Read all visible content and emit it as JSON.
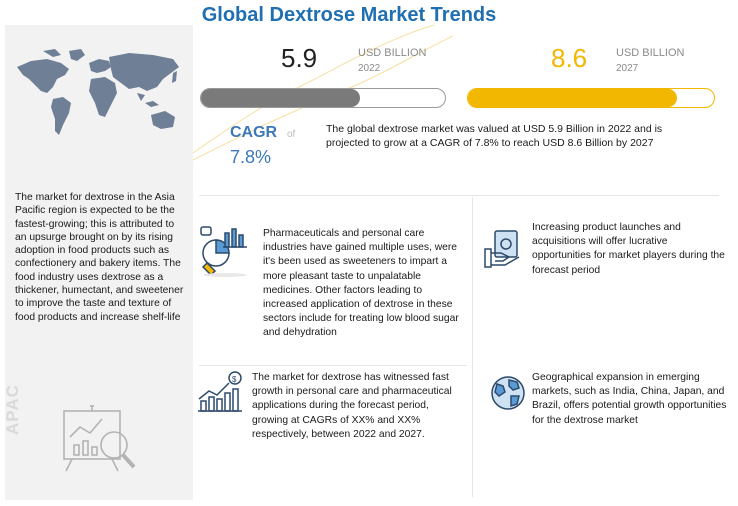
{
  "title": "Global Dextrose Market Trends",
  "market_2022": {
    "value": "5.9",
    "unit": "USD BILLION",
    "year": "2022",
    "bar_fill_fraction": 0.65
  },
  "market_2027": {
    "value": "8.6",
    "unit": "USD BILLION",
    "year": "2027",
    "bar_fill_fraction": 0.85
  },
  "cagr": {
    "label": "CAGR",
    "of": "of",
    "value": "7.8%"
  },
  "summary": "The global dextrose market was valued at USD 5.9 Billion in 2022 and is projected to grow at a CAGR of 7.8% to reach USD 8.6 Billion by 2027",
  "region": {
    "label": "APAC",
    "text": "The market for dextrose in the Asia Pacific region is expected to be the fastest-growing; this is attributed to an upsurge brought on by its rising adoption in food products such as confectionery and bakery items. The food industry uses dextrose as a thickener, humectant, and sweetener to improve the taste and texture of food products and increase shelf-life"
  },
  "insights": [
    {
      "icon": "pharma-chart-icon",
      "text": "Pharmaceuticals and personal care industries have gained multiple uses, were it's been used as sweeteners to impart a more pleasant taste to unpalatable medicines. Other factors leading to increased application of dextrose in these sectors include for treating low blood sugar and dehydration"
    },
    {
      "icon": "money-hand-icon",
      "text": "Increasing product launches and acquisitions will offer lucrative opportunities for market players during the forecast period"
    },
    {
      "icon": "growth-bar-chart-icon",
      "text": "The market for dextrose has witnessed fast growth in personal care and pharmaceutical applications during the forecast period, growing at CAGRs of XX% and XX% respectively, between 2022 and 2027."
    },
    {
      "icon": "globe-icon",
      "text": "Geographical expansion in emerging markets, such as India, China, Japan, and Brazil, offers potential growth opportunities for the dextrose market"
    }
  ],
  "colors": {
    "title": "#1f6fb2",
    "cagr": "#3d78b8",
    "bar_2022": "#7a7a7a",
    "bar_2027": "#f2b700",
    "left_panel": "#f2f2f2"
  }
}
